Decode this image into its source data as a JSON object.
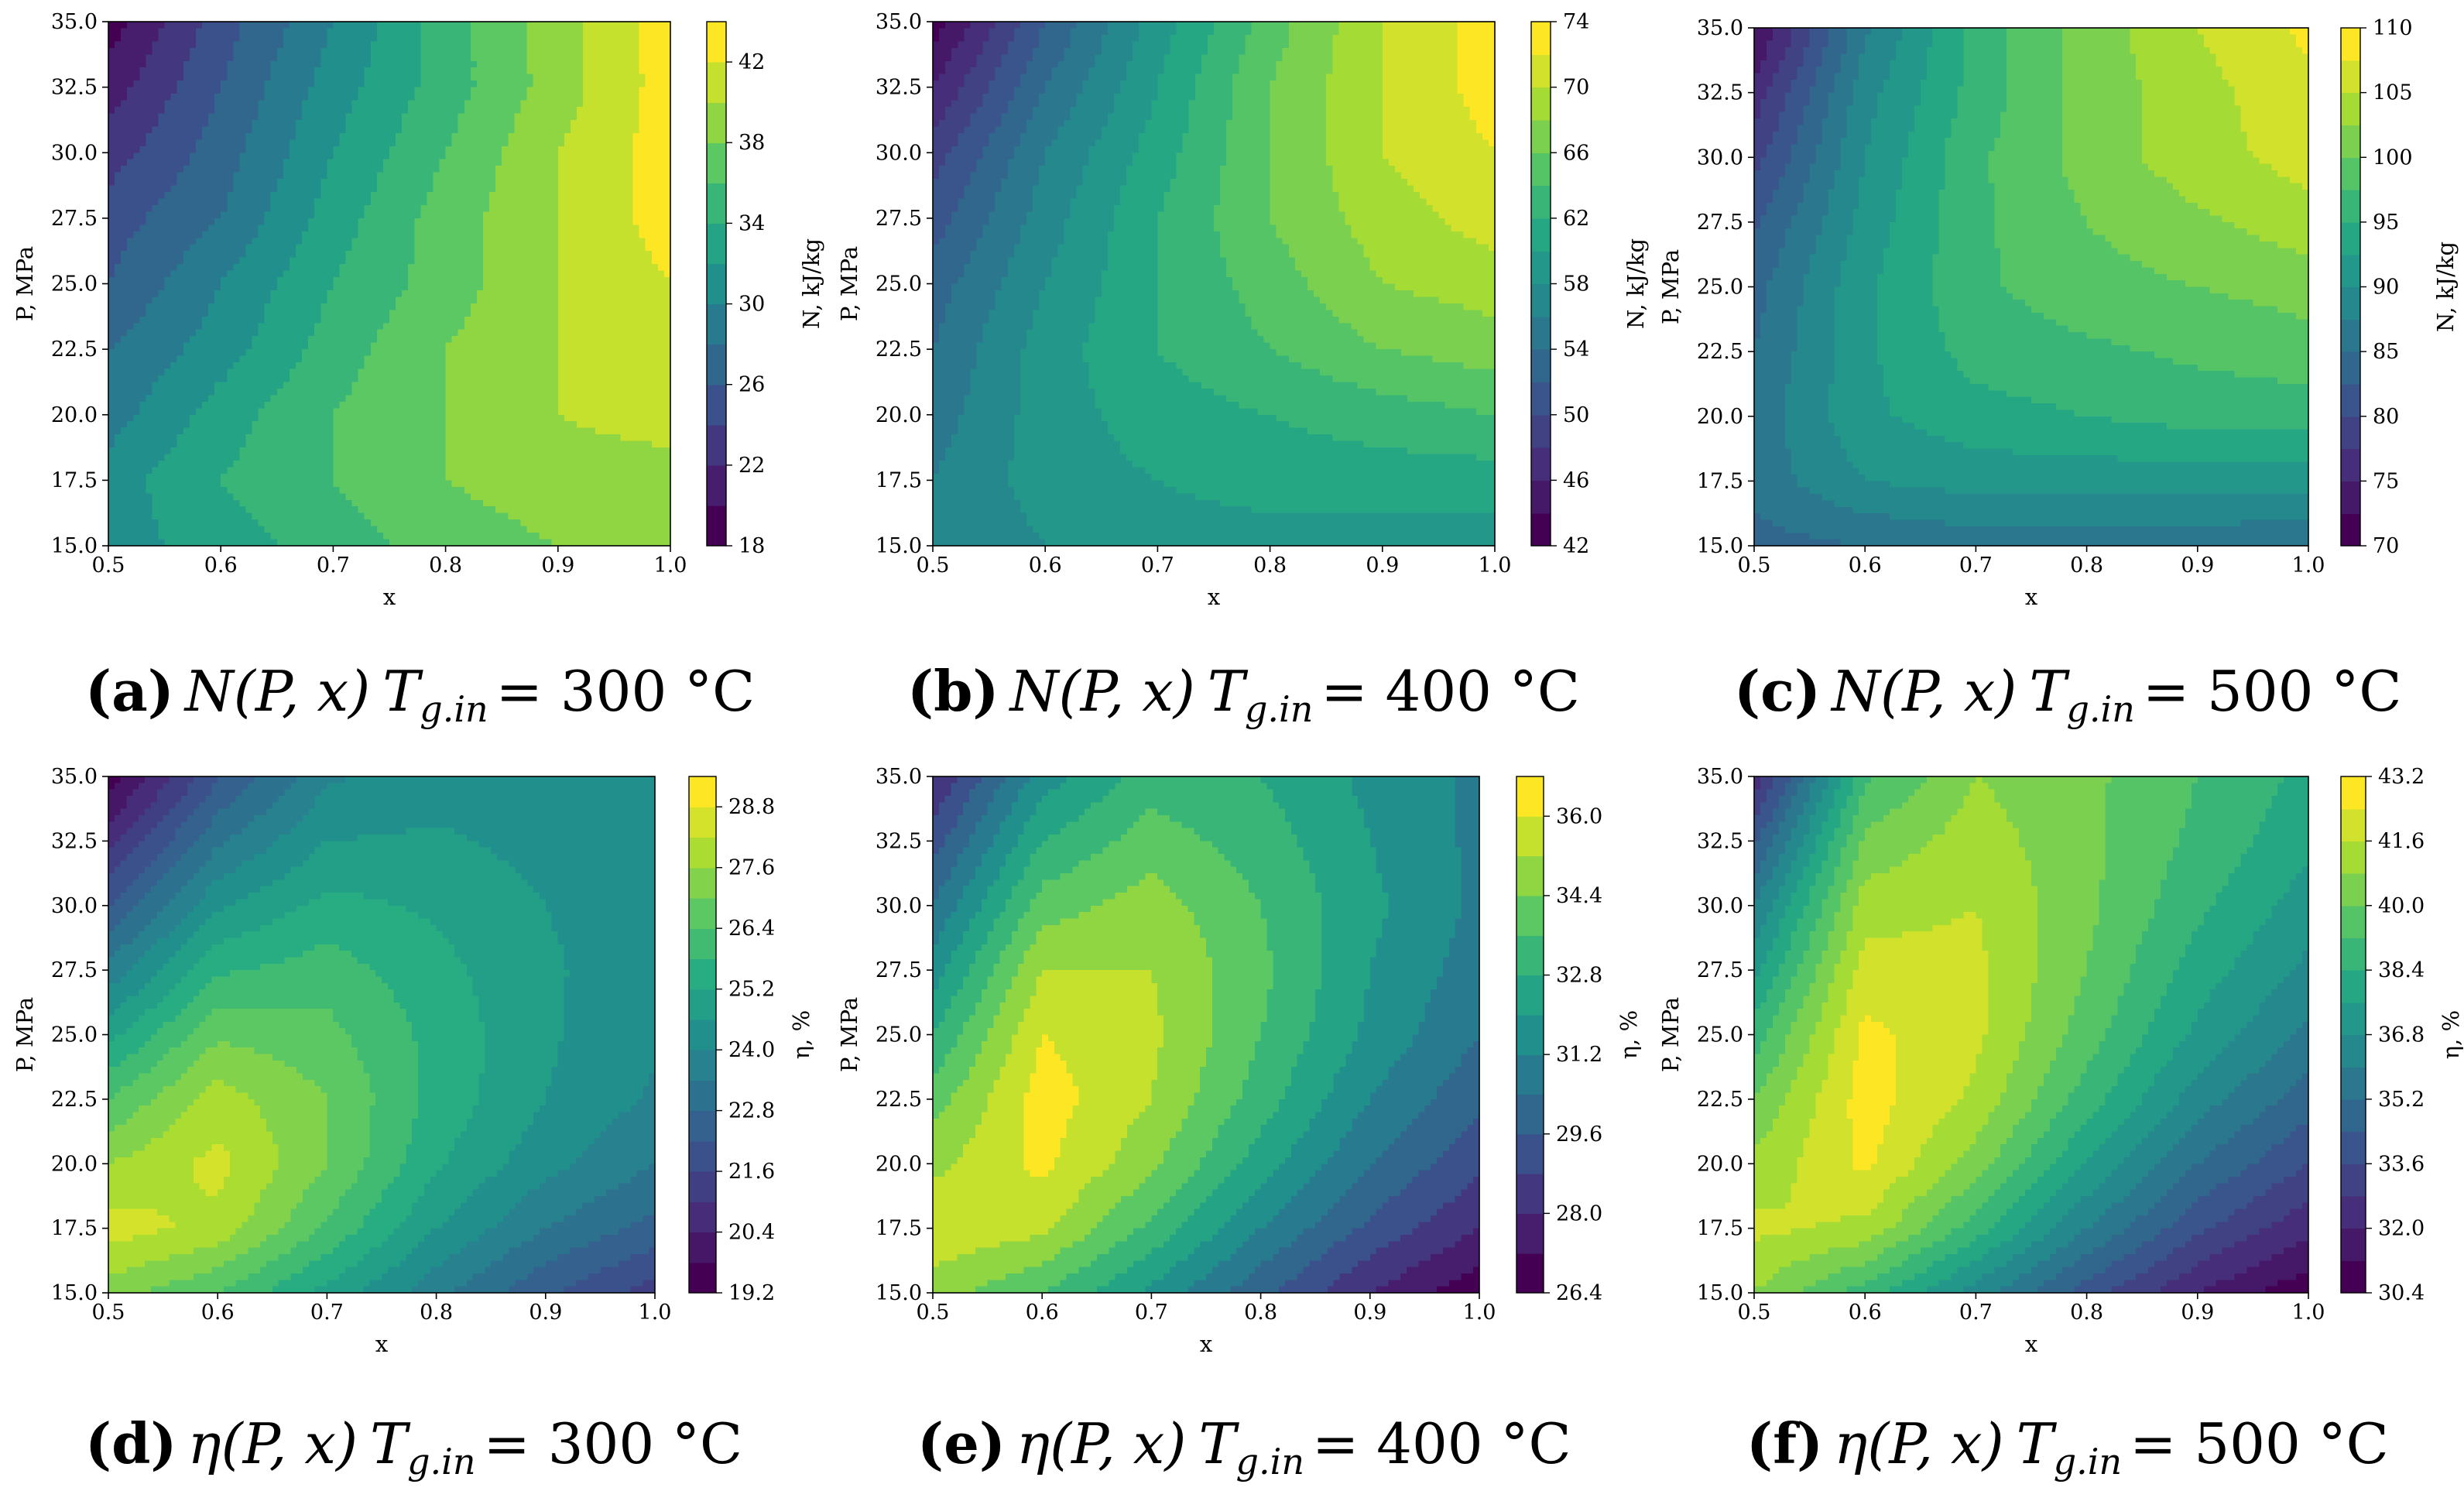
{
  "figure": {
    "description_colormap": "viridis",
    "xlabel": "x",
    "ylabel": "P, MPa",
    "x_ticks": [
      "0.5",
      "0.6",
      "0.7",
      "0.8",
      "0.9",
      "1.0"
    ],
    "y_ticks": [
      "15.0",
      "17.5",
      "20.0",
      "22.5",
      "25.0",
      "27.5",
      "30.0",
      "32.5",
      "35.0"
    ]
  },
  "chart_data": [
    {
      "type": "heatmap",
      "panel": "a",
      "caption_tag": "(a)",
      "caption_expr": "N(P, x)",
      "caption_tag_var": "T",
      "caption_sub": "g.in",
      "caption_value": "= 300 °C",
      "quantity": "N",
      "xlabel": "x",
      "ylabel": "P, MPa",
      "cbar_label": "N, kJ/kg",
      "xlim": [
        0.5,
        1.0
      ],
      "ylim": [
        15.0,
        35.0
      ],
      "levels": [
        18,
        20,
        22,
        24,
        26,
        28,
        30,
        32,
        34,
        36,
        38,
        40,
        42,
        44
      ],
      "cbar_ticks": [
        "18",
        "22",
        "26",
        "30",
        "34",
        "38",
        "42"
      ],
      "x": [
        0.5,
        0.6,
        0.7,
        0.8,
        0.9,
        1.0
      ],
      "y": [
        15.0,
        17.5,
        20.0,
        22.5,
        25.0,
        27.5,
        30.0,
        32.5,
        35.0
      ],
      "z": [
        [
          31,
          33,
          35,
          37,
          38,
          39
        ],
        [
          31,
          34,
          36,
          38,
          39,
          39
        ],
        [
          29,
          33,
          36,
          38,
          40,
          41
        ],
        [
          28,
          31,
          35,
          38,
          40,
          42
        ],
        [
          26,
          30,
          34,
          37,
          40,
          42
        ],
        [
          25,
          28,
          33,
          37,
          40,
          43
        ],
        [
          23,
          27,
          32,
          36,
          40,
          43
        ],
        [
          21,
          26,
          31,
          35,
          39,
          43
        ],
        [
          19,
          25,
          30,
          35,
          39,
          43
        ]
      ]
    },
    {
      "type": "heatmap",
      "panel": "b",
      "caption_tag": "(b)",
      "caption_expr": "N(P, x)",
      "caption_tag_var": "T",
      "caption_sub": "g.in",
      "caption_value": "= 400 °C",
      "quantity": "N",
      "xlabel": "x",
      "ylabel": "P, MPa",
      "cbar_label": "N, kJ/kg",
      "xlim": [
        0.5,
        1.0
      ],
      "ylim": [
        15.0,
        35.0
      ],
      "levels": [
        42,
        44,
        46,
        48,
        50,
        52,
        54,
        56,
        58,
        60,
        62,
        64,
        66,
        68,
        70,
        72,
        74
      ],
      "cbar_ticks": [
        "42",
        "46",
        "50",
        "54",
        "58",
        "62",
        "66",
        "70",
        "74"
      ],
      "x": [
        0.5,
        0.6,
        0.7,
        0.8,
        0.9,
        1.0
      ],
      "y": [
        15.0,
        17.5,
        20.0,
        22.5,
        25.0,
        27.5,
        30.0,
        32.5,
        35.0
      ],
      "z": [
        [
          56,
          58,
          59,
          59,
          59,
          59
        ],
        [
          56,
          59,
          60,
          61,
          61,
          61
        ],
        [
          55,
          59,
          61,
          62,
          63,
          64
        ],
        [
          54,
          59,
          62,
          64,
          66,
          67
        ],
        [
          53,
          58,
          62,
          65,
          68,
          69
        ],
        [
          51,
          57,
          62,
          66,
          69,
          71
        ],
        [
          49,
          56,
          61,
          66,
          70,
          72
        ],
        [
          46,
          54,
          60,
          66,
          70,
          73
        ],
        [
          43,
          52,
          59,
          65,
          70,
          73
        ]
      ]
    },
    {
      "type": "heatmap",
      "panel": "c",
      "caption_tag": "(c)",
      "caption_expr": "N(P, x)",
      "caption_tag_var": "T",
      "caption_sub": "g.in",
      "caption_value": "= 500 °C",
      "quantity": "N",
      "xlabel": "x",
      "ylabel": "P, MPa",
      "cbar_label": "N, kJ/kg",
      "xlim": [
        0.5,
        1.0
      ],
      "ylim": [
        15.0,
        35.0
      ],
      "levels": [
        70,
        72.5,
        75,
        77.5,
        80,
        82.5,
        85,
        87.5,
        90,
        92.5,
        95,
        97.5,
        100,
        102.5,
        105,
        107.5,
        110
      ],
      "cbar_ticks": [
        "70",
        "75",
        "80",
        "85",
        "90",
        "95",
        "100",
        "105",
        "110"
      ],
      "x": [
        0.5,
        0.6,
        0.7,
        0.8,
        0.9,
        1.0
      ],
      "y": [
        15.0,
        17.5,
        20.0,
        22.5,
        25.0,
        27.5,
        30.0,
        32.5,
        35.0
      ],
      "z": [
        [
          84,
          85,
          86,
          86,
          86,
          85
        ],
        [
          86,
          90,
          91,
          91,
          91,
          91
        ],
        [
          86,
          92,
          94,
          95,
          96,
          96
        ],
        [
          85,
          92,
          96,
          97,
          98,
          99
        ],
        [
          84,
          92,
          97,
          99,
          100,
          101
        ],
        [
          82,
          91,
          97,
          100,
          102,
          104
        ],
        [
          79,
          90,
          97,
          101,
          104,
          106
        ],
        [
          76,
          89,
          96,
          101,
          104,
          107
        ],
        [
          72,
          87,
          96,
          101,
          105,
          108
        ]
      ]
    },
    {
      "type": "heatmap",
      "panel": "d",
      "caption_tag": "(d)",
      "caption_expr": "η(P, x)",
      "caption_tag_var": "T",
      "caption_sub": "g.in",
      "caption_value": "= 300 °C",
      "quantity": "η",
      "xlabel": "x",
      "ylabel": "P, MPa",
      "cbar_label": "η, %",
      "xlim": [
        0.5,
        1.0
      ],
      "ylim": [
        15.0,
        35.0
      ],
      "levels": [
        19.2,
        19.8,
        20.4,
        21.0,
        21.6,
        22.2,
        22.8,
        23.4,
        24.0,
        24.6,
        25.2,
        25.8,
        26.4,
        27.0,
        27.6,
        28.2,
        28.8,
        29.4
      ],
      "cbar_ticks": [
        "19.2",
        "20.4",
        "21.6",
        "22.8",
        "24.0",
        "25.2",
        "26.4",
        "27.6",
        "28.8"
      ],
      "x": [
        0.5,
        0.6,
        0.7,
        0.8,
        0.9,
        1.0
      ],
      "y": [
        15.0,
        17.5,
        20.0,
        22.5,
        25.0,
        27.5,
        30.0,
        32.5,
        35.0
      ],
      "z": [
        [
          27.3,
          26.4,
          25.0,
          23.6,
          22.3,
          21.3
        ],
        [
          28.5,
          28.0,
          26.3,
          24.6,
          23.4,
          22.6
        ],
        [
          27.6,
          28.4,
          27.0,
          25.3,
          24.2,
          23.4
        ],
        [
          26.4,
          27.9,
          27.0,
          25.6,
          24.6,
          23.9
        ],
        [
          25.0,
          26.9,
          26.6,
          25.6,
          24.7,
          24.1
        ],
        [
          23.6,
          25.7,
          26.1,
          25.4,
          24.7,
          24.2
        ],
        [
          22.2,
          24.5,
          25.4,
          25.1,
          24.6,
          24.2
        ],
        [
          20.8,
          23.3,
          24.6,
          24.7,
          24.4,
          24.2
        ],
        [
          19.4,
          22.1,
          23.9,
          24.3,
          24.2,
          24.1
        ]
      ]
    },
    {
      "type": "heatmap",
      "panel": "e",
      "caption_tag": "(e)",
      "caption_expr": "η(P, x)",
      "caption_tag_var": "T",
      "caption_sub": "g.in",
      "caption_value": "= 400 °C",
      "quantity": "η",
      "xlabel": "x",
      "ylabel": "P, MPa",
      "cbar_label": "η, %",
      "xlim": [
        0.5,
        1.0
      ],
      "ylim": [
        15.0,
        35.0
      ],
      "levels": [
        26.4,
        27.2,
        28.0,
        28.8,
        29.6,
        30.4,
        31.2,
        32.0,
        32.8,
        33.6,
        34.4,
        35.2,
        36.0,
        36.8
      ],
      "cbar_ticks": [
        "26.4",
        "28.0",
        "29.6",
        "31.2",
        "32.8",
        "34.4",
        "36.0"
      ],
      "x": [
        0.5,
        0.6,
        0.7,
        0.8,
        0.9,
        1.0
      ],
      "y": [
        15.0,
        17.5,
        20.0,
        22.5,
        25.0,
        27.5,
        30.0,
        32.5,
        35.0
      ],
      "z": [
        [
          34.8,
          33.6,
          31.8,
          29.8,
          28.0,
          26.6
        ],
        [
          35.8,
          35.4,
          33.4,
          31.2,
          29.4,
          28.0
        ],
        [
          35.0,
          36.2,
          34.6,
          32.4,
          30.4,
          29.0
        ],
        [
          34.0,
          36.4,
          35.2,
          33.2,
          31.2,
          29.8
        ],
        [
          32.8,
          36.0,
          35.4,
          33.6,
          31.8,
          30.4
        ],
        [
          31.6,
          35.2,
          35.2,
          33.8,
          32.0,
          30.8
        ],
        [
          30.4,
          34.0,
          34.8,
          33.6,
          32.2,
          31.0
        ],
        [
          29.2,
          32.8,
          34.0,
          33.2,
          32.0,
          31.0
        ],
        [
          28.0,
          31.6,
          33.2,
          32.8,
          31.8,
          31.0
        ]
      ]
    },
    {
      "type": "heatmap",
      "panel": "f",
      "caption_tag": "(f)",
      "caption_expr": "η(P, x)",
      "caption_tag_var": "T",
      "caption_sub": "g.in",
      "caption_value": "= 500 °C",
      "quantity": "η",
      "xlabel": "x",
      "ylabel": "P, MPa",
      "cbar_label": "η, %",
      "xlim": [
        0.5,
        1.0
      ],
      "ylim": [
        15.0,
        35.0
      ],
      "levels": [
        30.4,
        31.2,
        32.0,
        32.8,
        33.6,
        34.4,
        35.2,
        36.0,
        36.8,
        37.6,
        38.4,
        39.2,
        40.0,
        40.8,
        41.6,
        42.4,
        43.2
      ],
      "cbar_ticks": [
        "30.4",
        "32.0",
        "33.6",
        "35.2",
        "36.8",
        "38.4",
        "40.0",
        "41.6",
        "43.2"
      ],
      "x": [
        0.5,
        0.6,
        0.7,
        0.8,
        0.9,
        1.0
      ],
      "y": [
        15.0,
        17.5,
        20.0,
        22.5,
        25.0,
        27.5,
        30.0,
        32.5,
        35.0
      ],
      "z": [
        [
          40.8,
          38.8,
          36.4,
          34.0,
          32.0,
          30.6
        ],
        [
          41.8,
          41.4,
          38.8,
          36.0,
          33.8,
          32.2
        ],
        [
          41.0,
          42.6,
          40.4,
          37.6,
          35.2,
          33.6
        ],
        [
          40.0,
          42.8,
          41.4,
          38.8,
          36.4,
          34.8
        ],
        [
          38.8,
          42.6,
          41.8,
          39.6,
          37.4,
          35.8
        ],
        [
          37.4,
          42.0,
          41.8,
          40.0,
          38.0,
          36.6
        ],
        [
          36.0,
          41.2,
          41.6,
          40.2,
          38.6,
          37.2
        ],
        [
          34.2,
          40.2,
          41.2,
          40.2,
          39.0,
          37.8
        ],
        [
          32.2,
          39.0,
          40.8,
          40.2,
          39.2,
          38.2
        ]
      ]
    }
  ]
}
